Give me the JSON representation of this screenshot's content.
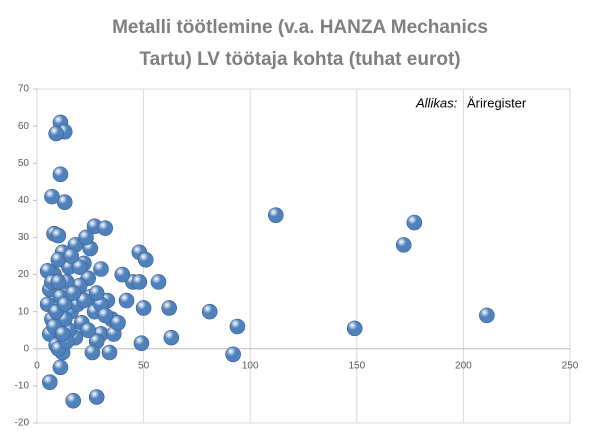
{
  "chart_data": {
    "type": "scatter",
    "title": [
      "Metalli töötlemine  (v.a. HANZA Mechanics",
      "Tartu) LV töötaja  kohta (tuhat eurot)"
    ],
    "annotation": {
      "label": "Allikas:",
      "text": "Äriregister"
    },
    "color": "#4f81bd",
    "grid": true,
    "xlim": [
      0,
      250
    ],
    "xticks": [
      0,
      50,
      100,
      150,
      200,
      250
    ],
    "ylim": [
      -20,
      70
    ],
    "yticks": [
      -20,
      -10,
      0,
      10,
      20,
      30,
      40,
      50,
      60,
      70
    ],
    "x": [
      11,
      13,
      9,
      11,
      13,
      7,
      8,
      10,
      27,
      32,
      112,
      177,
      172,
      211,
      149,
      94,
      92,
      81,
      63,
      62,
      57,
      48,
      51,
      45,
      42,
      40,
      35,
      33,
      30,
      28,
      34,
      49,
      50,
      48,
      30,
      25,
      22,
      24,
      20,
      18,
      15,
      14,
      12,
      10,
      8,
      6,
      5,
      7,
      6,
      9,
      12,
      11,
      6,
      17,
      28,
      16,
      19,
      21,
      25,
      27,
      24,
      18,
      15,
      13,
      11,
      9,
      8,
      10,
      14,
      30,
      32,
      22,
      5,
      7,
      10,
      13,
      17,
      20,
      23,
      16,
      28,
      36,
      38,
      12,
      26
    ],
    "y": [
      61,
      58.5,
      58,
      47,
      39.5,
      41,
      31,
      30.5,
      33,
      32.5,
      36,
      34,
      28,
      9,
      5.5,
      6,
      -1.5,
      10,
      3,
      11,
      18,
      26,
      24,
      18,
      13,
      20,
      8,
      13,
      4,
      2,
      -1,
      1.5,
      11,
      18,
      21.5,
      27,
      23,
      19,
      17,
      28,
      22,
      18,
      26,
      24,
      20,
      16,
      12,
      8,
      4,
      1,
      -1,
      -5,
      -9,
      -14,
      -13,
      10,
      12,
      7,
      14,
      10,
      5,
      3,
      5,
      8,
      14,
      10,
      6,
      0,
      2,
      12,
      9,
      13,
      21,
      18,
      18,
      12,
      15,
      22,
      30,
      25,
      15,
      4,
      7,
      4,
      -1
    ]
  }
}
